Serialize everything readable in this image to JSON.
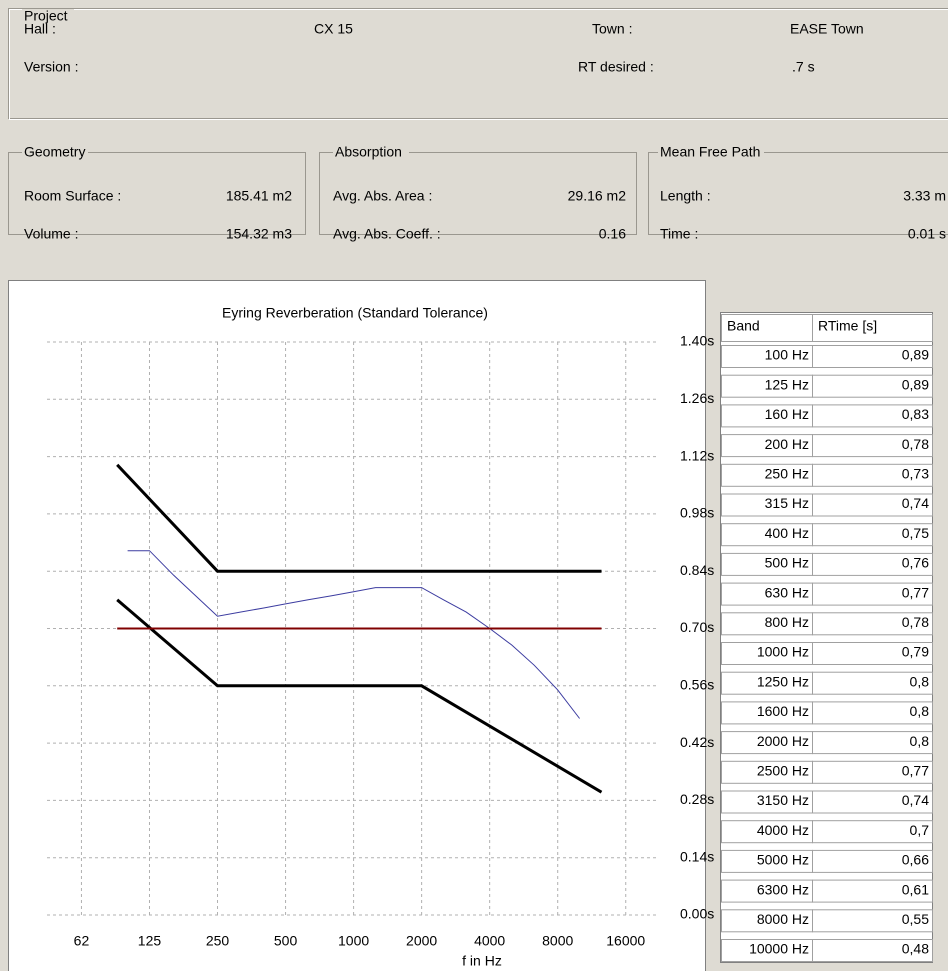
{
  "project": {
    "title": "Project",
    "hall_label": "Hall :",
    "hall": "CX 15",
    "town_label": "Town :",
    "town": "EASE Town",
    "version_label": "Version :",
    "rt_desired_label": "RT desired :",
    "rt_desired": ".7 s"
  },
  "geometry": {
    "title": "Geometry",
    "room_surface_label": "Room Surface :",
    "room_surface": "185.41 m2",
    "volume_label": "Volume :",
    "volume": "154.32 m3"
  },
  "absorption": {
    "title": "Absorption",
    "area_label": "Avg. Abs. Area :",
    "area": "29.16 m2",
    "coeff_label": "Avg. Abs. Coeff. :",
    "coeff": "0.16"
  },
  "mean_free_path": {
    "title": "Mean Free Path",
    "length_label": "Length :",
    "length": "3.33 m",
    "time_label": "Time :",
    "time": "0.01 s"
  },
  "chart_data": {
    "type": "line",
    "title": "Eyring Reverberation (Standard Tolerance)",
    "x_label": "f in Hz",
    "log_x": true,
    "grid": true,
    "xlim": [
      44,
      22000
    ],
    "ylim": [
      0,
      1.4
    ],
    "xticks": [
      {
        "value": 62.5,
        "label": "62"
      },
      125,
      250,
      500,
      1000,
      2000,
      4000,
      8000,
      16000
    ],
    "yticks": [
      {
        "value": 0,
        "label": "0.00s"
      },
      {
        "value": 0.14,
        "label": "0.14s"
      },
      {
        "value": 0.28,
        "label": "0.28s"
      },
      {
        "value": 0.42,
        "label": "0.42s"
      },
      {
        "value": 0.56,
        "label": "0.56s"
      },
      {
        "value": 0.7,
        "label": "0.70s"
      },
      {
        "value": 0.84,
        "label": "0.84s"
      },
      {
        "value": 0.98,
        "label": "0.98s"
      },
      {
        "value": 1.12,
        "label": "1.12s"
      },
      {
        "value": 1.26,
        "label": "1.26s"
      },
      {
        "value": 1.4,
        "label": "1.40s"
      }
    ],
    "series": [
      {
        "color": "#3c3ca0",
        "width": 1,
        "x": [
          100,
          125,
          160,
          200,
          250,
          315,
          400,
          500,
          630,
          800,
          1000,
          1250,
          1600,
          2000,
          2500,
          3150,
          4000,
          5000,
          6300,
          8000,
          10000
        ],
        "values": [
          0.89,
          0.89,
          0.83,
          0.78,
          0.73,
          0.74,
          0.75,
          0.76,
          0.77,
          0.78,
          0.79,
          0.8,
          0.8,
          0.8,
          0.77,
          0.74,
          0.7,
          0.66,
          0.61,
          0.55,
          0.48
        ]
      },
      {
        "color": "#000000",
        "width": 3,
        "x": [
          90,
          250,
          12500
        ],
        "values": [
          1.1,
          0.84,
          0.84
        ]
      },
      {
        "color": "#000000",
        "width": 3,
        "x": [
          90,
          250,
          2000,
          12500
        ],
        "values": [
          0.77,
          0.56,
          0.56,
          0.3
        ]
      },
      {
        "color": "#800000",
        "width": 2,
        "x": [
          90,
          12500
        ],
        "values": [
          0.7,
          0.7
        ]
      }
    ]
  },
  "table": {
    "header": [
      "Band",
      "RTime [s]"
    ],
    "rows": [
      [
        "100 Hz",
        "0,89"
      ],
      [
        "125 Hz",
        "0,89"
      ],
      [
        "160 Hz",
        "0,83"
      ],
      [
        "200 Hz",
        "0,78"
      ],
      [
        "250 Hz",
        "0,73"
      ],
      [
        "315 Hz",
        "0,74"
      ],
      [
        "400 Hz",
        "0,75"
      ],
      [
        "500 Hz",
        "0,76"
      ],
      [
        "630 Hz",
        "0,77"
      ],
      [
        "800 Hz",
        "0,78"
      ],
      [
        "1000 Hz",
        "0,79"
      ],
      [
        "1250 Hz",
        "0,8"
      ],
      [
        "1600 Hz",
        "0,8"
      ],
      [
        "2000 Hz",
        "0,8"
      ],
      [
        "2500 Hz",
        "0,77"
      ],
      [
        "3150 Hz",
        "0,74"
      ],
      [
        "4000 Hz",
        "0,7"
      ],
      [
        "5000 Hz",
        "0,66"
      ],
      [
        "6300 Hz",
        "0,61"
      ],
      [
        "8000 Hz",
        "0,55"
      ],
      [
        "10000 Hz",
        "0,48"
      ]
    ]
  }
}
